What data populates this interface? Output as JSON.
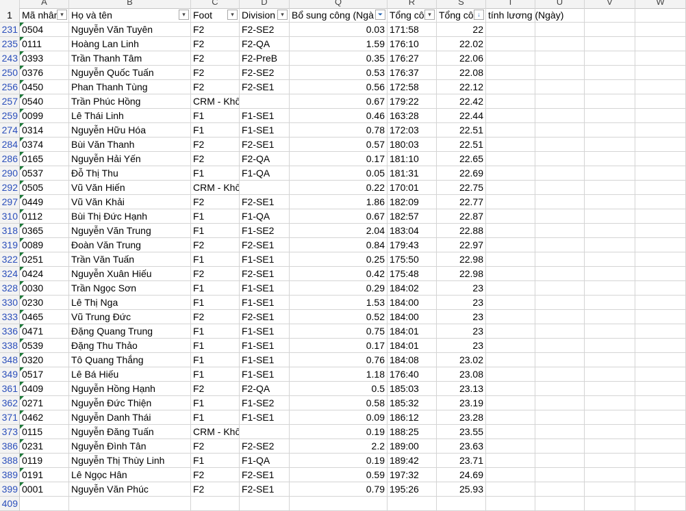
{
  "columns": [
    "A",
    "B",
    "C",
    "D",
    "Q",
    "R",
    "S",
    "T",
    "U",
    "V",
    "W"
  ],
  "header_row": {
    "row_number": "1",
    "A": "Mã nhân",
    "B": "Họ và tên",
    "C": "Foot",
    "D": "Division",
    "Q": "Bổ sung công (Ngà",
    "R": "Tổng cô",
    "S": "Tổng cô",
    "T": "tính lương (Ngày)"
  },
  "filter_icons": {
    "A": "dropdown-arrow",
    "B": "dropdown-arrow",
    "C": "dropdown-arrow",
    "D": "dropdown-arrow",
    "Q": "filter-funnel-icon",
    "R": "dropdown-arrow",
    "S": "sort-ascending-icon"
  },
  "rows": [
    {
      "n": "231",
      "id": "0504",
      "name": "Nguyễn Văn Tuyên",
      "foot": "F2",
      "div": "F2-SE2",
      "bs": "0.03",
      "r": "171:58",
      "s": "22"
    },
    {
      "n": "235",
      "id": "0111",
      "name": "Hoàng Lan Linh",
      "foot": "F2",
      "div": "F2-QA",
      "bs": "1.59",
      "r": "176:10",
      "s": "22.02"
    },
    {
      "n": "243",
      "id": "0393",
      "name": "Trần Thanh Tâm",
      "foot": "F2",
      "div": "F2-PreB",
      "bs": "0.35",
      "r": "176:27",
      "s": "22.06"
    },
    {
      "n": "250",
      "id": "0376",
      "name": "Nguyễn Quốc Tuấn",
      "foot": "F2",
      "div": "F2-SE2",
      "bs": "0.53",
      "r": "176:37",
      "s": "22.08"
    },
    {
      "n": "256",
      "id": "0450",
      "name": "Phan Thanh Tùng",
      "foot": "F2",
      "div": "F2-SE1",
      "bs": "0.56",
      "r": "172:58",
      "s": "22.12"
    },
    {
      "n": "257",
      "id": "0540",
      "name": "Trần Phúc Hồng",
      "foot": "CRM - Khố",
      "div": "",
      "bs": "0.67",
      "r": "179:22",
      "s": "22.42"
    },
    {
      "n": "259",
      "id": "0099",
      "name": "Lê Thái Linh",
      "foot": "F1",
      "div": "F1-SE1",
      "bs": "0.46",
      "r": "163:28",
      "s": "22.44"
    },
    {
      "n": "274",
      "id": "0314",
      "name": "Nguyễn Hữu Hóa",
      "foot": "F1",
      "div": "F1-SE1",
      "bs": "0.78",
      "r": "172:03",
      "s": "22.51"
    },
    {
      "n": "284",
      "id": "0374",
      "name": "Bùi Văn Thanh",
      "foot": "F2",
      "div": "F2-SE1",
      "bs": "0.57",
      "r": "180:03",
      "s": "22.51"
    },
    {
      "n": "286",
      "id": "0165",
      "name": "Nguyễn Hải Yến",
      "foot": "F2",
      "div": "F2-QA",
      "bs": "0.17",
      "r": "181:10",
      "s": "22.65"
    },
    {
      "n": "290",
      "id": "0537",
      "name": "Đỗ Thị Thu",
      "foot": "F1",
      "div": "F1-QA",
      "bs": "0.05",
      "r": "181:31",
      "s": "22.69"
    },
    {
      "n": "292",
      "id": "0505",
      "name": "Vũ Văn Hiến",
      "foot": "CRM - Khố",
      "div": "",
      "bs": "0.22",
      "r": "170:01",
      "s": "22.75"
    },
    {
      "n": "297",
      "id": "0449",
      "name": "Vũ Văn Khải",
      "foot": "F2",
      "div": "F2-SE1",
      "bs": "1.86",
      "r": "182:09",
      "s": "22.77"
    },
    {
      "n": "310",
      "id": "0112",
      "name": "Bùi Thị Đức Hạnh",
      "foot": "F1",
      "div": "F1-QA",
      "bs": "0.67",
      "r": "182:57",
      "s": "22.87"
    },
    {
      "n": "318",
      "id": "0365",
      "name": "Nguyễn Văn Trung",
      "foot": "F1",
      "div": "F1-SE2",
      "bs": "2.04",
      "r": "183:04",
      "s": "22.88"
    },
    {
      "n": "319",
      "id": "0089",
      "name": "Đoàn Văn Trung",
      "foot": "F2",
      "div": "F2-SE1",
      "bs": "0.84",
      "r": "179:43",
      "s": "22.97"
    },
    {
      "n": "322",
      "id": "0251",
      "name": "Trần Văn Tuấn",
      "foot": "F1",
      "div": "F1-SE1",
      "bs": "0.25",
      "r": "175:50",
      "s": "22.98"
    },
    {
      "n": "324",
      "id": "0424",
      "name": "Nguyễn Xuân Hiếu",
      "foot": "F2",
      "div": "F2-SE1",
      "bs": "0.42",
      "r": "175:48",
      "s": "22.98"
    },
    {
      "n": "328",
      "id": "0030",
      "name": "Trần Ngọc Sơn",
      "foot": "F1",
      "div": "F1-SE1",
      "bs": "0.29",
      "r": "184:02",
      "s": "23"
    },
    {
      "n": "330",
      "id": "0230",
      "name": "Lê Thị Nga",
      "foot": "F1",
      "div": "F1-SE1",
      "bs": "1.53",
      "r": "184:00",
      "s": "23"
    },
    {
      "n": "333",
      "id": "0465",
      "name": "Vũ Trung Đức",
      "foot": "F2",
      "div": "F2-SE1",
      "bs": "0.52",
      "r": "184:00",
      "s": "23"
    },
    {
      "n": "336",
      "id": "0471",
      "name": "Đặng Quang Trung",
      "foot": "F1",
      "div": "F1-SE1",
      "bs": "0.75",
      "r": "184:01",
      "s": "23"
    },
    {
      "n": "338",
      "id": "0539",
      "name": "Đặng Thu Thảo",
      "foot": "F1",
      "div": "F1-SE1",
      "bs": "0.17",
      "r": "184:01",
      "s": "23"
    },
    {
      "n": "348",
      "id": "0320",
      "name": "Tô Quang Thắng",
      "foot": "F1",
      "div": "F1-SE1",
      "bs": "0.76",
      "r": "184:08",
      "s": "23.02"
    },
    {
      "n": "349",
      "id": "0517",
      "name": "Lê Bá Hiếu",
      "foot": "F1",
      "div": "F1-SE1",
      "bs": "1.18",
      "r": "176:40",
      "s": "23.08"
    },
    {
      "n": "361",
      "id": "0409",
      "name": "Nguyễn Hồng Hạnh",
      "foot": "F2",
      "div": "F2-QA",
      "bs": "0.5",
      "r": "185:03",
      "s": "23.13"
    },
    {
      "n": "362",
      "id": "0271",
      "name": "Nguyễn Đức Thiện",
      "foot": "F1",
      "div": "F1-SE2",
      "bs": "0.58",
      "r": "185:32",
      "s": "23.19"
    },
    {
      "n": "371",
      "id": "0462",
      "name": "Nguyễn Danh Thái",
      "foot": "F1",
      "div": "F1-SE1",
      "bs": "0.09",
      "r": "186:12",
      "s": "23.28"
    },
    {
      "n": "373",
      "id": "0115",
      "name": "Nguyễn Đăng Tuấn",
      "foot": "CRM - Khố",
      "div": "",
      "bs": "0.19",
      "r": "188:25",
      "s": "23.55"
    },
    {
      "n": "386",
      "id": "0231",
      "name": "Nguyễn Đình Tân",
      "foot": "F2",
      "div": "F2-SE2",
      "bs": "2.2",
      "r": "189:00",
      "s": "23.63"
    },
    {
      "n": "388",
      "id": "0119",
      "name": "Nguyễn Thị Thùy Linh",
      "foot": "F1",
      "div": "F1-QA",
      "bs": "0.19",
      "r": "189:42",
      "s": "23.71"
    },
    {
      "n": "389",
      "id": "0191",
      "name": "Lê Ngọc Hân",
      "foot": "F2",
      "div": "F2-SE1",
      "bs": "0.59",
      "r": "197:32",
      "s": "24.69"
    },
    {
      "n": "399",
      "id": "0001",
      "name": "Nguyễn Văn Phúc",
      "foot": "F2",
      "div": "F2-SE1",
      "bs": "0.79",
      "r": "195:26",
      "s": "25.93"
    }
  ],
  "trailing_row_number": "409",
  "colors": {
    "row_number_text": "#2a4ebb",
    "header_bg": "#f3f3f3",
    "gridline": "#d4d4d4",
    "error_triangle": "#1e7a3a"
  }
}
